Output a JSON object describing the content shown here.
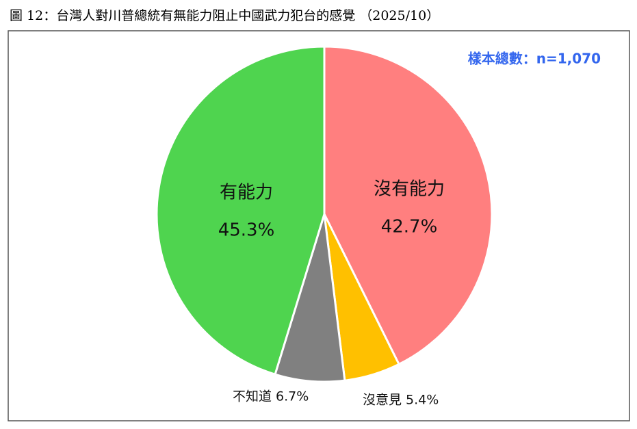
{
  "chart_data": {
    "type": "pie",
    "title": "圖 12：台灣人對川普總統有無能力阻止中國武力犯台的感覺 （2025/10）",
    "annotation": "樣本總數：n=1,070",
    "categories": [
      "沒有能力",
      "沒意見",
      "不知道",
      "有能力"
    ],
    "values": [
      42.7,
      5.4,
      6.7,
      45.3
    ],
    "value_labels": [
      "42.7%",
      "5.4%",
      "6.7%",
      "45.3%"
    ],
    "colors": [
      "#ff7f7f",
      "#ffc000",
      "#808080",
      "#4fd44f"
    ]
  }
}
